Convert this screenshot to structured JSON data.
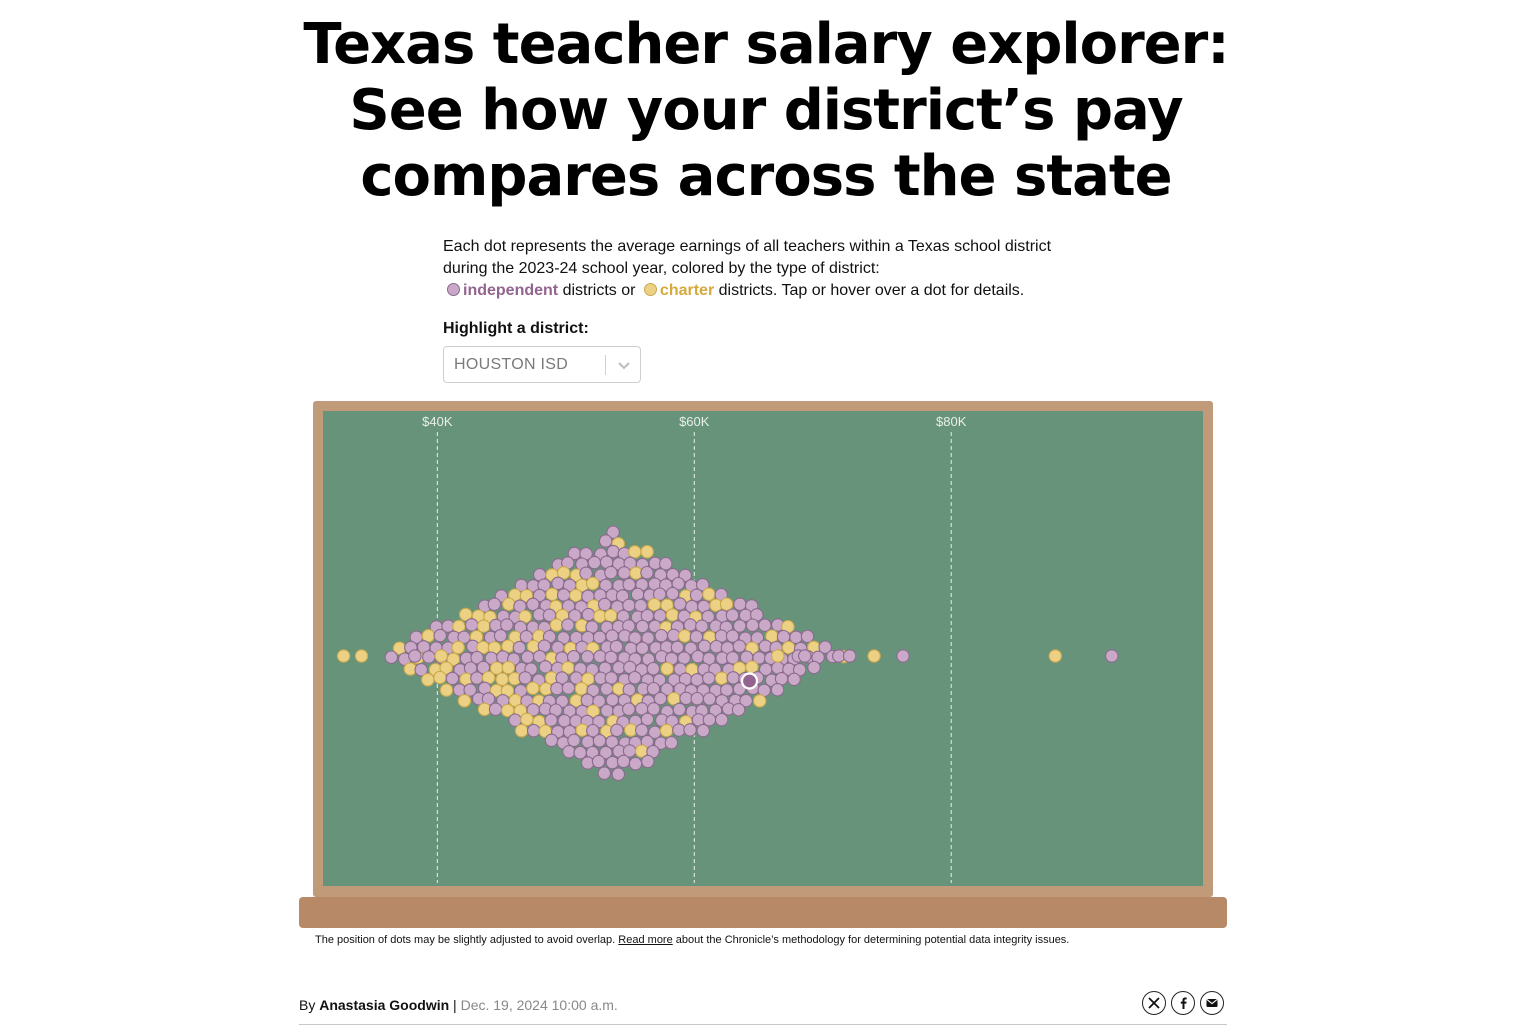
{
  "headline": {
    "line1": "Texas teacher salary explorer:",
    "line2": "See how your district’s pay",
    "line3": "compares across the state"
  },
  "intro": {
    "line1": "Each dot represents the average earnings of all teachers within a Texas school district",
    "line2": "during the 2023-24 school year, colored by the type of district:",
    "independent": "independent",
    "districts_or": "districts or",
    "charter": "charter",
    "districts_end": "districts. Tap or hover over a dot for details."
  },
  "highlight": {
    "label": "Highlight a district:",
    "selected": "HOUSTON ISD"
  },
  "colors": {
    "board": "#68937b",
    "frame": "#c19a7a",
    "tray": "#b88966",
    "independent_fill": "#c9a8c8",
    "independent_stroke": "#8a6a8c",
    "charter_fill": "#ecd184",
    "charter_stroke": "#caa84e",
    "highlight_fill": "#93648f"
  },
  "chart_data": {
    "type": "scatter",
    "subtype": "beeswarm",
    "x_axis": {
      "ticks": [
        40000,
        60000,
        80000
      ],
      "tick_labels": [
        "$40K",
        "$60K",
        "$80K"
      ],
      "range": [
        31100,
        99600
      ],
      "gridlines": "dashed"
    },
    "legend": [
      "independent",
      "charter"
    ],
    "series": [
      {
        "name": "independent",
        "values": [
          38250,
          68100,
          68600,
          71250,
          72100,
          76250,
          92500
        ],
        "description": "about 1,000 districts, dense cluster centered near $53K, spanning roughly $41K to $67K"
      },
      {
        "name": "charter",
        "values": [
          32700,
          34100,
          40300,
          66500,
          74000,
          88100
        ],
        "description": "several hundred districts, spread mostly between $40K and $57K"
      }
    ],
    "highlighted": {
      "name": "HOUSTON ISD",
      "type": "independent",
      "salary": 64300
    },
    "annotations": []
  },
  "icons": {
    "select": "chevron-down-icon",
    "share": [
      "x-logo-icon",
      "facebook-icon",
      "email-icon"
    ]
  },
  "footnote": {
    "text_before": "The position of dots may be slightly adjusted to avoid overlap.",
    "link": "Read more",
    "text_after": "about the Chronicle’s methodology for determining potential data integrity issues."
  },
  "byline": {
    "by": "By",
    "author": "Anastasia Goodwin",
    "separator": "|",
    "date": "Dec. 19, 2024 10:00 a.m."
  }
}
